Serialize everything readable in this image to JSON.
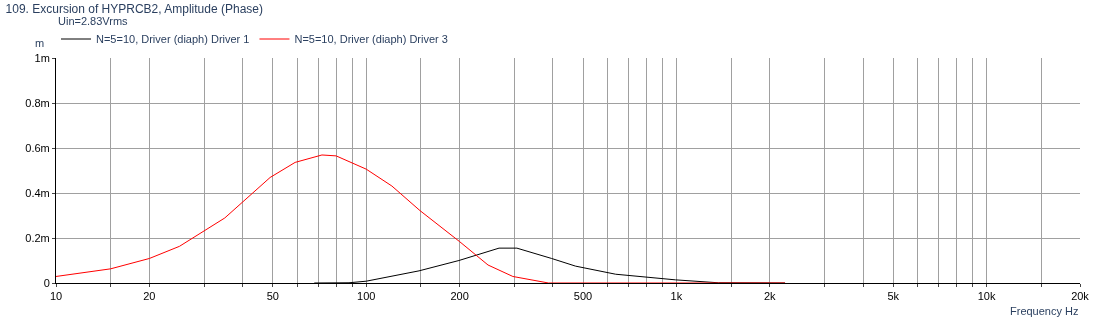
{
  "chart_data": {
    "type": "line",
    "title": "109. Excursion of HYPRCB2, Amplitude (Phase)",
    "xlabel": "Frequency Hz",
    "ylabel": "m",
    "annotations": [
      "Uin=2.83Vrms"
    ],
    "log": "x",
    "grid": true,
    "legend": "top",
    "marker": "none",
    "line_style": "solid",
    "xlim": [
      10,
      20000
    ],
    "xticks": [
      10,
      {
        "value": 15,
        "label": null
      },
      20,
      {
        "value": 30,
        "label": null
      },
      {
        "value": 40,
        "label": null
      },
      50,
      {
        "value": 60,
        "label": null
      },
      {
        "value": 70,
        "label": null
      },
      {
        "value": 80,
        "label": null
      },
      {
        "value": 90,
        "label": null
      },
      100,
      {
        "value": 150,
        "label": null
      },
      200,
      {
        "value": 300,
        "label": null
      },
      {
        "value": 400,
        "label": null
      },
      500,
      {
        "value": 600,
        "label": null
      },
      {
        "value": 700,
        "label": null
      },
      {
        "value": 800,
        "label": null
      },
      {
        "value": 900,
        "label": null
      },
      {
        "value": 1000,
        "label": "1k"
      },
      {
        "value": 1500,
        "label": null
      },
      {
        "value": 2000,
        "label": "2k"
      },
      {
        "value": 3000,
        "label": null
      },
      {
        "value": 4000,
        "label": null
      },
      {
        "value": 5000,
        "label": "5k"
      },
      {
        "value": 6000,
        "label": null
      },
      {
        "value": 7000,
        "label": null
      },
      {
        "value": 8000,
        "label": null
      },
      {
        "value": 9000,
        "label": null
      },
      {
        "value": 10000,
        "label": "10k"
      },
      {
        "value": 15000,
        "label": null
      },
      {
        "value": 20000,
        "label": "20k"
      }
    ],
    "ylim": [
      0,
      1
    ],
    "yticks": [
      0,
      {
        "value": 0.2,
        "label": "0.2m"
      },
      {
        "value": 0.4,
        "label": "0.4m"
      },
      {
        "value": 0.6,
        "label": "0.6m"
      },
      {
        "value": 0.8,
        "label": "0.8m"
      },
      {
        "value": 1,
        "label": "1m"
      }
    ],
    "series": [
      {
        "name": "N=5=10, Driver (diaph) Driver 1",
        "color": "#000000",
        "x": [
          68,
          88,
          100,
          148,
          199,
          268,
          306,
          396,
          473,
          637,
          993,
          1365,
          2240
        ],
        "values": [
          0,
          0.001,
          0.008,
          0.054,
          0.1,
          0.155,
          0.155,
          0.109,
          0.075,
          0.039,
          0.014,
          0.001,
          0
        ]
      },
      {
        "name": "N=5=10, Driver (diaph) Driver 3",
        "color": "#ff0000",
        "x": [
          10,
          15,
          20,
          25,
          35,
          49,
          59,
          72,
          80,
          100,
          121,
          149,
          200,
          247,
          297,
          387,
          2240
        ],
        "values": [
          0.029,
          0.063,
          0.109,
          0.163,
          0.289,
          0.469,
          0.536,
          0.569,
          0.565,
          0.506,
          0.431,
          0.322,
          0.184,
          0.08,
          0.029,
          0,
          0
        ]
      }
    ]
  }
}
